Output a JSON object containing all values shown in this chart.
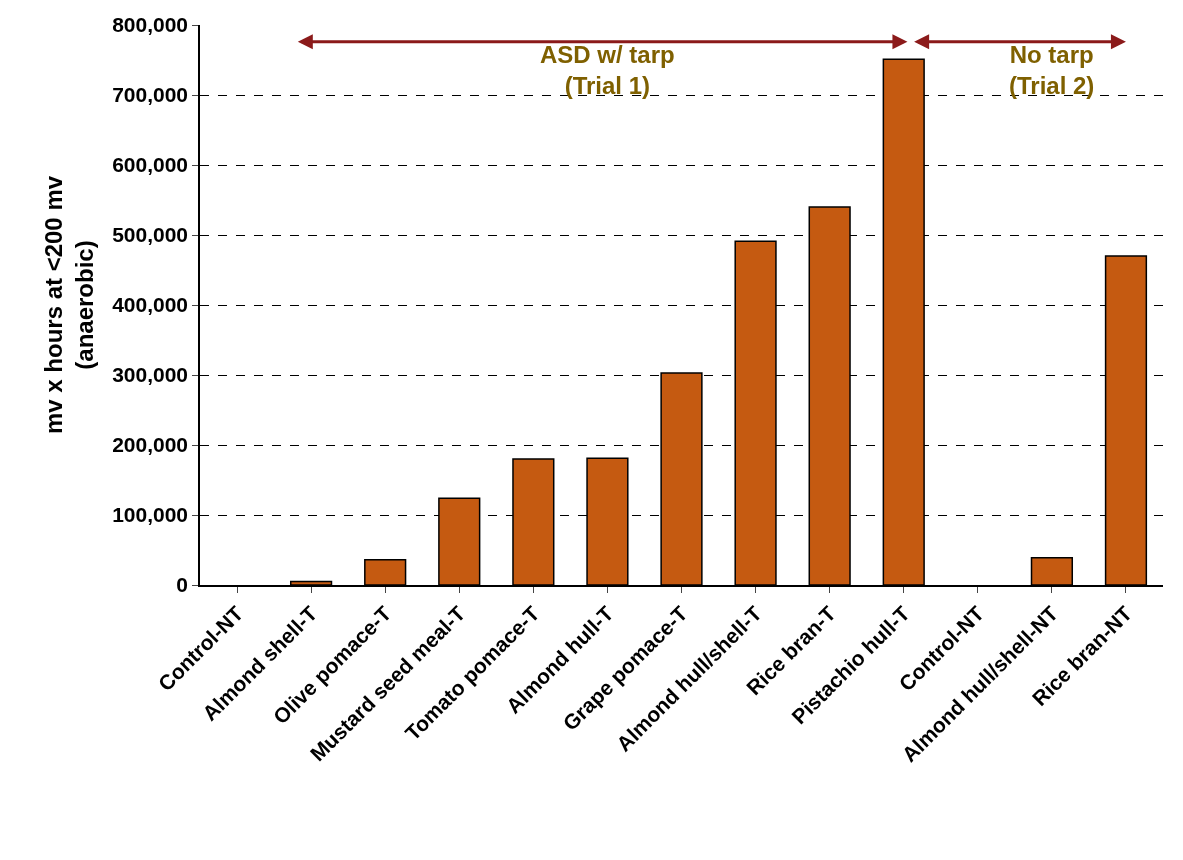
{
  "chart_data": {
    "type": "bar",
    "ylabel": "mv x hours at <200 mv\n(anaerobic)",
    "categories": [
      "Control-NT",
      "Almond shell-T",
      "Olive pomace-T",
      "Mustard seed meal-T",
      "Tomato pomace-T",
      "Almond hull-T",
      "Grape pomace-T",
      "Almond hull/shell-T",
      "Rice bran-T",
      "Pistachio hull-T",
      "Control-NT",
      "Almond hull/shell-NT",
      "Rice bran-NT"
    ],
    "values": [
      0,
      5000,
      36000,
      124000,
      180000,
      181000,
      303000,
      491000,
      540000,
      751000,
      0,
      39000,
      470000
    ],
    "color": "#c55a11",
    "ylim": [
      0,
      800000
    ],
    "yticks": [
      0,
      {
        "value": 100000,
        "label": "100,000"
      },
      {
        "value": 200000,
        "label": "200,000"
      },
      {
        "value": 300000,
        "label": "300,000"
      },
      {
        "value": 400000,
        "label": "400,000"
      },
      {
        "value": 500000,
        "label": "500,000"
      },
      {
        "value": 600000,
        "label": "600,000"
      },
      {
        "value": 700000,
        "label": "700,000"
      },
      {
        "value": 800000,
        "label": "800,000"
      }
    ],
    "grid": "y",
    "annotations": [
      "ASD w/ tarp\n(Trial 1)",
      "No tarp\n(Trial 2)"
    ]
  }
}
